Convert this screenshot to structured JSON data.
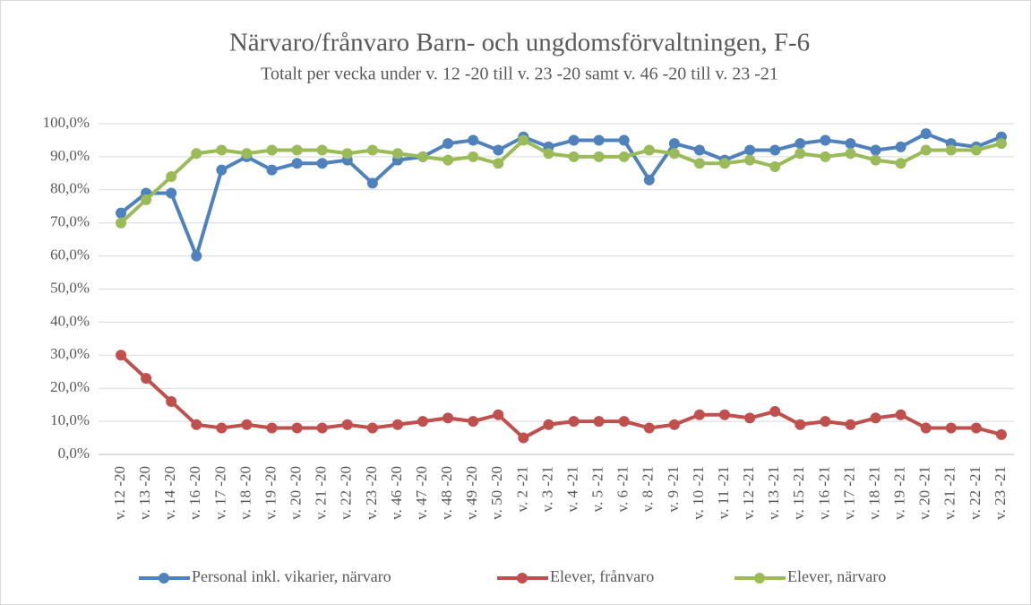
{
  "chart_data": {
    "type": "line",
    "title": "Närvaro/frånvaro Barn- och ungdomsförvaltningen, F-6",
    "subtitle": "Totalt per vecka under v. 12 -20 till v. 23 -20 samt v. 46 -20 till v. 23 -21",
    "categories": [
      "v. 12 -20",
      "v. 13 -20",
      "v. 14 -20",
      "v. 16 -20",
      "v. 17 -20",
      "v. 18 -20",
      "v. 19 -20",
      "v. 20 -20",
      "v. 21 -20",
      "v. 22 -20",
      "v. 23 -20",
      "v. 46 -20",
      "v. 47 -20",
      "v. 48 -20",
      "v. 49 -20",
      "v. 50 -20",
      "v. 2 -21",
      "v. 3 -21",
      "v. 4 -21",
      "v. 5 -21",
      "v. 6 -21",
      "v. 8 -21",
      "v. 9 -21",
      "v. 10 -21",
      "v. 11 -21",
      "v. 12 -21",
      "v. 13 -21",
      "v. 15 -21",
      "v. 16 -21",
      "v. 17 -21",
      "v. 18 -21",
      "v. 19 -21",
      "v. 20 -21",
      "v. 21 -21",
      "v. 22 -21",
      "v. 23 -21"
    ],
    "series": [
      {
        "name": "Personal inkl. vikarier, närvaro",
        "color": "#4f81bd",
        "values": [
          73,
          79,
          79,
          60,
          86,
          90,
          86,
          88,
          88,
          89,
          82,
          89,
          90,
          94,
          95,
          92,
          96,
          93,
          95,
          95,
          95,
          83,
          94,
          92,
          89,
          92,
          92,
          94,
          95,
          94,
          92,
          93,
          97,
          94,
          93,
          96
        ]
      },
      {
        "name": "Elever, frånvaro",
        "color": "#c0504d",
        "values": [
          30,
          23,
          16,
          9,
          8,
          9,
          8,
          8,
          8,
          9,
          8,
          9,
          10,
          11,
          10,
          12,
          5,
          9,
          10,
          10,
          10,
          8,
          9,
          12,
          12,
          11,
          13,
          9,
          10,
          9,
          11,
          12,
          8,
          8,
          8,
          6
        ]
      },
      {
        "name": "Elever, närvaro",
        "color": "#9bbb59",
        "values": [
          70,
          77,
          84,
          91,
          92,
          91,
          92,
          92,
          92,
          91,
          92,
          91,
          90,
          89,
          90,
          88,
          95,
          91,
          90,
          90,
          90,
          92,
          91,
          88,
          88,
          89,
          87,
          91,
          90,
          91,
          89,
          88,
          92,
          92,
          92,
          94
        ]
      }
    ],
    "ylim": [
      0,
      100
    ],
    "yticks": [
      {
        "value": 0,
        "label": "0,0%"
      },
      {
        "value": 10,
        "label": "10,0%"
      },
      {
        "value": 20,
        "label": "20,0%"
      },
      {
        "value": 30,
        "label": "30,0%"
      },
      {
        "value": 40,
        "label": "40,0%"
      },
      {
        "value": 50,
        "label": "50,0%"
      },
      {
        "value": 60,
        "label": "60,0%"
      },
      {
        "value": 70,
        "label": "70,0%"
      },
      {
        "value": 80,
        "label": "80,0%"
      },
      {
        "value": 90,
        "label": "90,0%"
      },
      {
        "value": 100,
        "label": "100,0%"
      }
    ],
    "grid": true,
    "legend": "bottom"
  }
}
